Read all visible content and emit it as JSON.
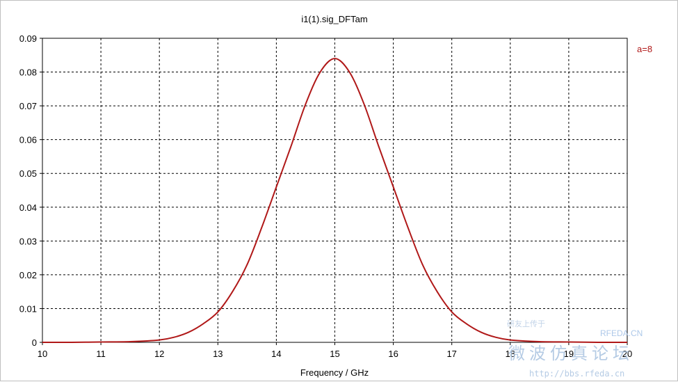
{
  "chart_data": {
    "type": "line",
    "title": "i1(1).sig_DFTam",
    "xlabel": "Frequency / GHz",
    "ylabel": "",
    "xlim": [
      10,
      20
    ],
    "ylim": [
      0,
      0.09
    ],
    "xticks": [
      "10",
      "11",
      "12",
      "13",
      "14",
      "15",
      "16",
      "17",
      "18",
      "19",
      "20"
    ],
    "yticks": [
      "0",
      "0.01",
      "0.02",
      "0.03",
      "0.04",
      "0.05",
      "0.06",
      "0.07",
      "0.08",
      "0.09"
    ],
    "grid": true,
    "legend_position": "right",
    "series": [
      {
        "name": "a=8",
        "color": "#b01818",
        "x": [
          10,
          10.5,
          11,
          11.5,
          12,
          12.25,
          12.5,
          12.75,
          13,
          13.25,
          13.5,
          13.75,
          14,
          14.25,
          14.5,
          14.75,
          15,
          15.25,
          15.5,
          15.75,
          16,
          16.25,
          16.5,
          16.75,
          17,
          17.25,
          17.5,
          17.75,
          18,
          18.5,
          19,
          19.5,
          20
        ],
        "y": [
          0,
          0,
          0.0001,
          0.0002,
          0.0007,
          0.0015,
          0.003,
          0.0055,
          0.009,
          0.015,
          0.023,
          0.034,
          0.046,
          0.058,
          0.0705,
          0.08,
          0.084,
          0.08,
          0.0705,
          0.058,
          0.046,
          0.034,
          0.023,
          0.015,
          0.009,
          0.0055,
          0.003,
          0.0015,
          0.0007,
          0.0002,
          0.0001,
          0,
          0
        ]
      }
    ]
  },
  "watermark": {
    "site_text": "RFEDA.CN",
    "chinese_text": "微波仿真论坛",
    "small_text": "研友上传于",
    "url_text": "http://bbs.rfeda.cn"
  }
}
